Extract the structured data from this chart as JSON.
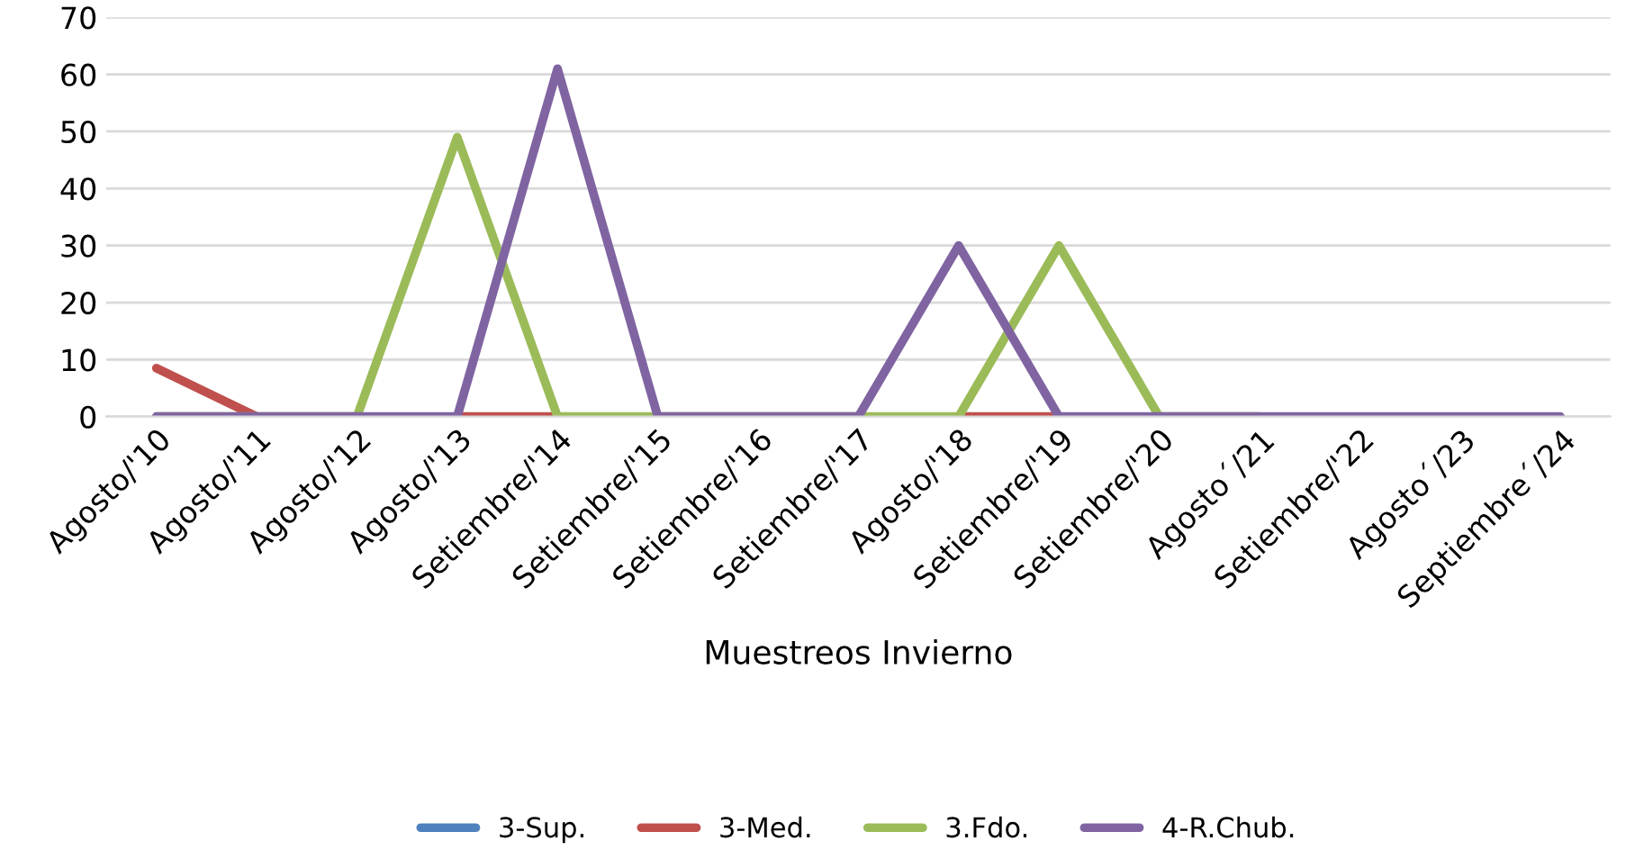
{
  "chart_data": {
    "type": "line",
    "xlabel": "Muestreos Invierno",
    "categories": [
      "Agosto/'10",
      "Agosto/'11",
      "Agosto/'12",
      "Agosto/'13",
      "Setiembre/'14",
      "Setiembre/'15",
      "Setiembre/'16",
      "Setiembre/'17",
      "Agosto/'18",
      "Setiembre/'19",
      "Setiembre/'20",
      "Agosto´/21",
      "Setiembre/'22",
      "Agosto´/23",
      "Septiembre´/24"
    ],
    "series": [
      {
        "name": "3-Sup.",
        "color": "#4f81bd",
        "values": [
          null,
          null,
          null,
          null,
          null,
          null,
          null,
          null,
          null,
          null,
          null,
          null,
          null,
          null,
          null
        ]
      },
      {
        "name": "3-Med.",
        "color": "#c0504d",
        "values": [
          8.5,
          0,
          null,
          0,
          0,
          null,
          null,
          null,
          0,
          0,
          null,
          null,
          null,
          null,
          null
        ]
      },
      {
        "name": "3.Fdo.",
        "color": "#9bbb59",
        "values": [
          0,
          0,
          0,
          49,
          0,
          0,
          0,
          0,
          0,
          30,
          0,
          0,
          null,
          null,
          null
        ]
      },
      {
        "name": "4-R.Chub.",
        "color": "#8064a2",
        "values": [
          0,
          0,
          0,
          0,
          61,
          0,
          0,
          0,
          30,
          0,
          0,
          0,
          0,
          0,
          0
        ]
      }
    ],
    "ylim": [
      0,
      70
    ],
    "yticks": [
      0,
      10,
      20,
      30,
      40,
      50,
      60,
      70
    ],
    "grid": "y",
    "legend": "bottom",
    "marker": "none",
    "line_style": "solid"
  }
}
